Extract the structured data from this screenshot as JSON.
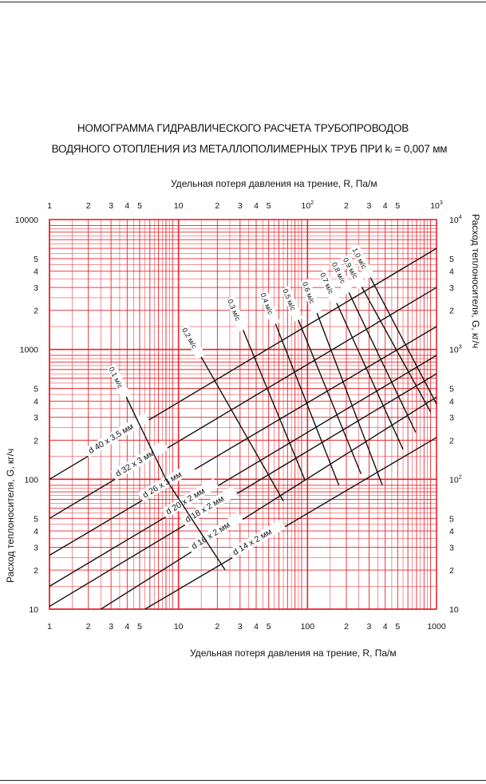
{
  "header": {
    "title_line1": "НОМОГРАММА ГИДРАВЛИЧЕСКОГО РАСЧЕТА ТРУБОПРОВОДОВ",
    "title_line2": "ВОДЯНОГО ОТОПЛЕНИЯ ИЗ МЕТАЛЛОПОЛИМЕРНЫХ ТРУБ ПРИ kₗ = 0,007 мм"
  },
  "colors": {
    "grid": "#e8242c",
    "curves": "#111111",
    "label_bg": "#ffffff"
  },
  "chart_data": {
    "type": "line",
    "title": "НОМОГРАММА ГИДРАВЛИЧЕСКОГО РАСЧЕТА ТРУБОПРОВОДОВ ВОДЯНОГО ОТОПЛЕНИЯ ИЗ МЕТАЛЛОПОЛИМЕРНЫХ ТРУБ ПРИ kₗ = 0,007 мм",
    "xlabel_top": "Удельная потеря давления на трение, R, Па/м",
    "xlabel_bottom": "Удельная потеря давления на трение, R, Па/м",
    "ylabel_left": "Расход теплоносителя, G, кг/ч",
    "ylabel_right": "Расход теплоносителя, G, кг/ч",
    "xscale": "log",
    "yscale": "log",
    "xlim": [
      1,
      1000
    ],
    "ylim": [
      10,
      10000
    ],
    "grid": true,
    "x_ticks_top": [
      {
        "v": 1,
        "t": "1"
      },
      {
        "v": 2,
        "t": "2"
      },
      {
        "v": 3,
        "t": "3"
      },
      {
        "v": 4,
        "t": "4"
      },
      {
        "v": 5,
        "t": "5"
      },
      {
        "v": 10,
        "t": "10"
      },
      {
        "v": 20,
        "t": "2"
      },
      {
        "v": 30,
        "t": "3"
      },
      {
        "v": 40,
        "t": "4"
      },
      {
        "v": 50,
        "t": "5"
      },
      {
        "v": 100,
        "t": "10",
        "sup": "2"
      },
      {
        "v": 200,
        "t": "2"
      },
      {
        "v": 300,
        "t": "3"
      },
      {
        "v": 400,
        "t": "4"
      },
      {
        "v": 500,
        "t": "5"
      },
      {
        "v": 1000,
        "t": "10",
        "sup": "3"
      }
    ],
    "x_ticks_bottom": [
      {
        "v": 1,
        "t": "1"
      },
      {
        "v": 2,
        "t": "2"
      },
      {
        "v": 3,
        "t": "3"
      },
      {
        "v": 4,
        "t": "4"
      },
      {
        "v": 5,
        "t": "5"
      },
      {
        "v": 10,
        "t": "10"
      },
      {
        "v": 20,
        "t": "2"
      },
      {
        "v": 30,
        "t": "3"
      },
      {
        "v": 40,
        "t": "4"
      },
      {
        "v": 50,
        "t": "5"
      },
      {
        "v": 100,
        "t": "100"
      },
      {
        "v": 200,
        "t": "2"
      },
      {
        "v": 300,
        "t": "3"
      },
      {
        "v": 400,
        "t": "4"
      },
      {
        "v": 500,
        "t": "5"
      },
      {
        "v": 1000,
        "t": "1000"
      }
    ],
    "y_ticks_left": [
      {
        "v": 10,
        "t": "10"
      },
      {
        "v": 20,
        "t": "2"
      },
      {
        "v": 30,
        "t": "3"
      },
      {
        "v": 40,
        "t": "4"
      },
      {
        "v": 50,
        "t": "5"
      },
      {
        "v": 100,
        "t": "100"
      },
      {
        "v": 200,
        "t": "2"
      },
      {
        "v": 300,
        "t": "3"
      },
      {
        "v": 400,
        "t": "4"
      },
      {
        "v": 500,
        "t": "5"
      },
      {
        "v": 1000,
        "t": "1000"
      },
      {
        "v": 2000,
        "t": "2"
      },
      {
        "v": 3000,
        "t": "3"
      },
      {
        "v": 4000,
        "t": "4"
      },
      {
        "v": 5000,
        "t": "5"
      },
      {
        "v": 10000,
        "t": "10000"
      }
    ],
    "y_ticks_right": [
      {
        "v": 10,
        "t": "10"
      },
      {
        "v": 20,
        "t": "2"
      },
      {
        "v": 30,
        "t": "3"
      },
      {
        "v": 40,
        "t": "4"
      },
      {
        "v": 50,
        "t": "5"
      },
      {
        "v": 100,
        "t": "10",
        "sup": "2"
      },
      {
        "v": 200,
        "t": "2"
      },
      {
        "v": 300,
        "t": "3"
      },
      {
        "v": 400,
        "t": "4"
      },
      {
        "v": 500,
        "t": "5"
      },
      {
        "v": 1000,
        "t": "10",
        "sup": "3"
      },
      {
        "v": 2000,
        "t": "2"
      },
      {
        "v": 3000,
        "t": "3"
      },
      {
        "v": 4000,
        "t": "4"
      },
      {
        "v": 5000,
        "t": "5"
      },
      {
        "v": 10000,
        "t": "10",
        "sup": "4"
      }
    ],
    "series_pipes": [
      {
        "name": "d 40 x 3,5 мм",
        "x": [
          1,
          1000
        ],
        "y": [
          100,
          6000
        ],
        "label_at": 0.1
      },
      {
        "name": "d 32 x 3 мм",
        "x": [
          1,
          1000
        ],
        "y": [
          50,
          3000
        ],
        "label_at": 0.17
      },
      {
        "name": "d 26 x 3 мм",
        "x": [
          1,
          1000
        ],
        "y": [
          26,
          1500
        ],
        "label_at": 0.24
      },
      {
        "name": "d 20 x 2 мм",
        "x": [
          1,
          1000
        ],
        "y": [
          15,
          900
        ],
        "label_at": 0.3
      },
      {
        "name": "d 18 x 2 мм",
        "x": [
          1,
          1000
        ],
        "y": [
          10.5,
          650
        ],
        "label_at": 0.35
      },
      {
        "name": "d 16 x 2 мм",
        "x": [
          2.5,
          1000
        ],
        "y": [
          10,
          430
        ],
        "label_at": 0.27
      },
      {
        "name": "d 14 x 2 мм",
        "x": [
          5.5,
          1000
        ],
        "y": [
          10,
          210
        ],
        "label_at": 0.3
      }
    ],
    "series_velocity": [
      {
        "name": "0,1 м/с",
        "x": [
          3,
          8,
          23
        ],
        "y": [
          750,
          100,
          20
        ]
      },
      {
        "name": "0,2 м/с",
        "x": [
          11,
          65
        ],
        "y": [
          1500,
          68
        ]
      },
      {
        "name": "0,3 м/с",
        "x": [
          25,
          95
        ],
        "y": [
          2500,
          100
        ]
      },
      {
        "name": "0,4 м/с",
        "x": [
          45,
          175
        ],
        "y": [
          2800,
          90
        ]
      },
      {
        "name": "0,5 м/с",
        "x": [
          67,
          260
        ],
        "y": [
          3000,
          110
        ]
      },
      {
        "name": "0,6 м/с",
        "x": [
          95,
          380
        ],
        "y": [
          3400,
          90
        ]
      },
      {
        "name": "0,7 м/с",
        "x": [
          130,
          550
        ],
        "y": [
          4000,
          170
        ]
      },
      {
        "name": "0,8 м/с",
        "x": [
          160,
          690
        ],
        "y": [
          4800,
          230
        ]
      },
      {
        "name": "0,9 м/с",
        "x": [
          195,
          900
        ],
        "y": [
          5200,
          330
        ]
      },
      {
        "name": "1,0 м/с",
        "x": [
          230,
          1000
        ],
        "y": [
          6200,
          380
        ]
      }
    ]
  }
}
